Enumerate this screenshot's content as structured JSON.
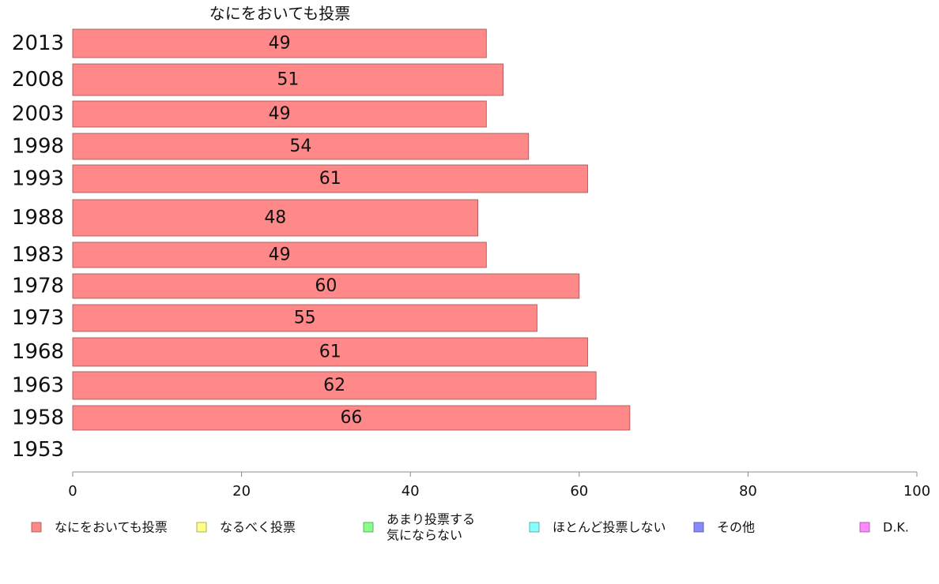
{
  "chart_data": {
    "type": "bar",
    "orientation": "horizontal",
    "title": "なにをおいても投票",
    "categories": [
      "2013",
      "2008",
      "2003",
      "1998",
      "1993",
      "1988",
      "1983",
      "1978",
      "1973",
      "1968",
      "1963",
      "1958",
      "1953"
    ],
    "series": [
      {
        "name": "なにをおいても投票",
        "values": [
          49,
          51,
          49,
          54,
          61,
          48,
          49,
          60,
          55,
          61,
          62,
          66,
          null
        ],
        "color": "#ff8888"
      }
    ],
    "xlim": [
      0,
      100
    ],
    "xticks": [
      0,
      20,
      40,
      60,
      80,
      100
    ],
    "grid": false,
    "legend": {
      "placement": "bottom",
      "items": [
        {
          "lines": [
            "なにをおいても投票"
          ],
          "color": "#ff8888"
        },
        {
          "lines": [
            "なるべく投票"
          ],
          "color": "#ffff88"
        },
        {
          "lines": [
            "あまり投票する",
            "気にならない"
          ],
          "color": "#88ff88"
        },
        {
          "lines": [
            "ほとんど投票しない"
          ],
          "color": "#88ffff"
        },
        {
          "lines": [
            "その他"
          ],
          "color": "#8888ff"
        },
        {
          "lines": [
            "D.K."
          ],
          "color": "#ff88ff"
        }
      ]
    }
  }
}
